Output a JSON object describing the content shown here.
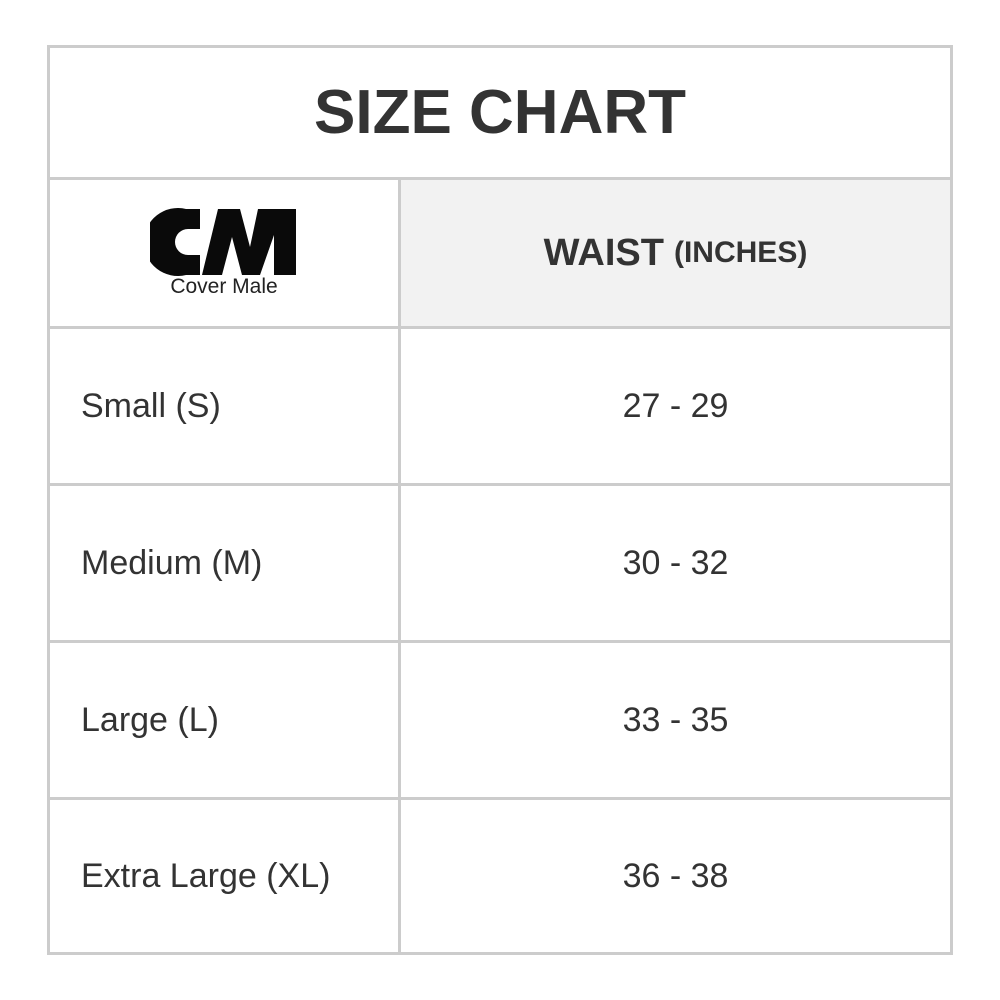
{
  "title": "SIZE CHART",
  "logo": {
    "text": "CM",
    "subtitle": "Cover Male"
  },
  "header": {
    "measure": "WAIST",
    "unit": "(INCHES)"
  },
  "rows": [
    {
      "size": "Small (S)",
      "waist": "27 - 29"
    },
    {
      "size": "Medium (M)",
      "waist": "30 - 32"
    },
    {
      "size": "Large (L)",
      "waist": "33 - 35"
    },
    {
      "size": "Extra Large (XL)",
      "waist": "36 - 38"
    }
  ]
}
